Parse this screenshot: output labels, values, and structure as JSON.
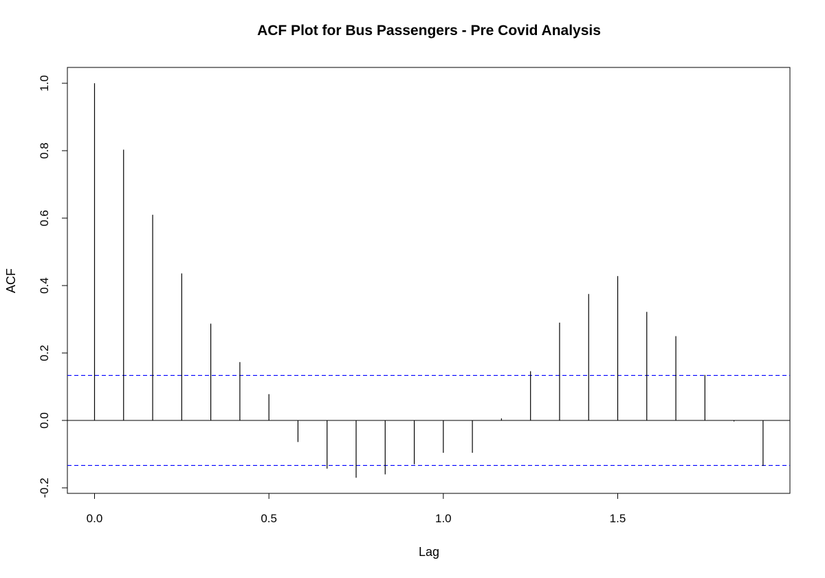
{
  "chart_data": {
    "type": "bar",
    "subtype": "acf-stem",
    "title": "ACF Plot for Bus Passengers - Pre Covid Analysis",
    "xlabel": "Lag",
    "ylabel": "ACF",
    "xlim": [
      0,
      1.9167
    ],
    "ylim": [
      -0.2,
      1.0
    ],
    "x_ticks": [
      0.0,
      0.5,
      1.0,
      1.5
    ],
    "x_tick_labels": [
      "0.0",
      "0.5",
      "1.0",
      "1.5"
    ],
    "y_ticks": [
      -0.2,
      0.0,
      0.2,
      0.4,
      0.6,
      0.8,
      1.0
    ],
    "y_tick_labels": [
      "-0.2",
      "0.0",
      "0.2",
      "0.4",
      "0.6",
      "0.8",
      "1.0"
    ],
    "grid": false,
    "legend": "none",
    "lags": [
      0.0,
      0.0833,
      0.1667,
      0.25,
      0.3333,
      0.4167,
      0.5,
      0.5833,
      0.6667,
      0.75,
      0.8333,
      0.9167,
      1.0,
      1.0833,
      1.1667,
      1.25,
      1.3333,
      1.4167,
      1.5,
      1.5833,
      1.6667,
      1.75,
      1.8333,
      1.9167
    ],
    "values": [
      1.0,
      0.803,
      0.61,
      0.436,
      0.287,
      0.173,
      0.078,
      -0.064,
      -0.143,
      -0.17,
      -0.16,
      -0.13,
      -0.096,
      -0.096,
      0.006,
      0.146,
      0.29,
      0.375,
      0.428,
      0.322,
      0.25,
      0.135,
      -0.003,
      -0.135
    ],
    "confidence_bound": 0.1335,
    "colors": {
      "stems": "#000000",
      "zero_line": "#000000",
      "confidence_lines": "#0000ff",
      "frame": "#000000"
    }
  }
}
